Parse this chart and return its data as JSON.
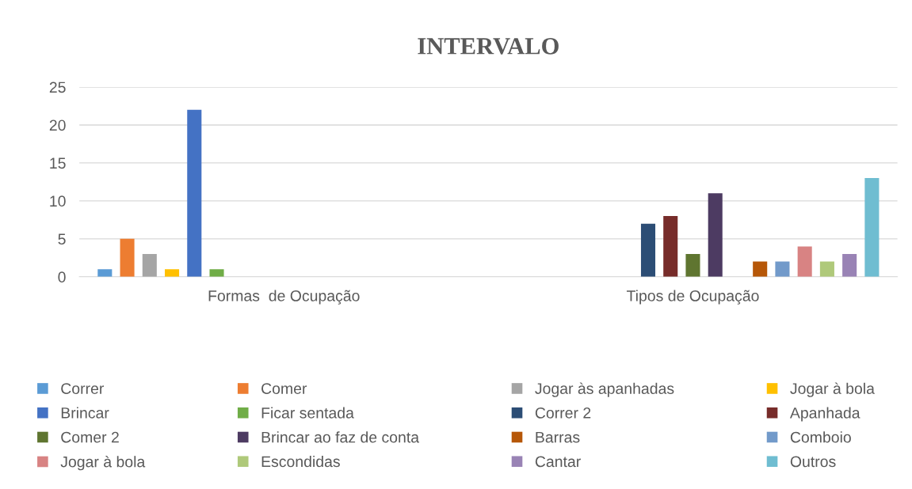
{
  "chart_data": {
    "type": "bar",
    "title": "INTERVALO",
    "categories": [
      "Formas  de Ocupação",
      "Tipos de Ocupação"
    ],
    "ylim": [
      0,
      25
    ],
    "yticks": [
      0,
      5,
      10,
      15,
      20,
      25
    ],
    "grid": "y",
    "legend": "bottom",
    "series": [
      {
        "name": "Correr",
        "color": "#5b9bd5",
        "values": [
          1,
          null
        ]
      },
      {
        "name": "Comer",
        "color": "#ed7d31",
        "values": [
          5,
          null
        ]
      },
      {
        "name": "Jogar às apanhadas",
        "color": "#a5a5a5",
        "values": [
          3,
          null
        ]
      },
      {
        "name": "Jogar à bola",
        "color": "#ffc000",
        "values": [
          1,
          null
        ]
      },
      {
        "name": "Brincar",
        "color": "#4472c4",
        "values": [
          22,
          null
        ]
      },
      {
        "name": "Ficar sentada",
        "color": "#70ad47",
        "values": [
          1,
          null
        ]
      },
      {
        "name": "Correr 2",
        "color": "#2c4d75",
        "values": [
          null,
          7
        ]
      },
      {
        "name": "Apanhada",
        "color": "#772c2a",
        "values": [
          null,
          8
        ]
      },
      {
        "name": "Comer 2",
        "color": "#5f7530",
        "values": [
          null,
          3
        ]
      },
      {
        "name": "Brincar ao faz de conta",
        "color": "#4d3b62",
        "values": [
          null,
          11
        ]
      },
      {
        "values": [
          null,
          null
        ]
      },
      {
        "name": "Barras",
        "color": "#b65708",
        "values": [
          null,
          2
        ]
      },
      {
        "name": "Comboio",
        "color": "#729aca",
        "values": [
          null,
          2
        ]
      },
      {
        "name": "Jogar à bola",
        "color": "#d88383",
        "values": [
          null,
          4
        ]
      },
      {
        "name": "Escondidas",
        "color": "#afc97a",
        "values": [
          null,
          2
        ]
      },
      {
        "name": "Cantar",
        "color": "#9983b5",
        "values": [
          null,
          3
        ]
      },
      {
        "name": "Outros",
        "color": "#6fbdd1",
        "values": [
          null,
          13
        ]
      }
    ]
  }
}
